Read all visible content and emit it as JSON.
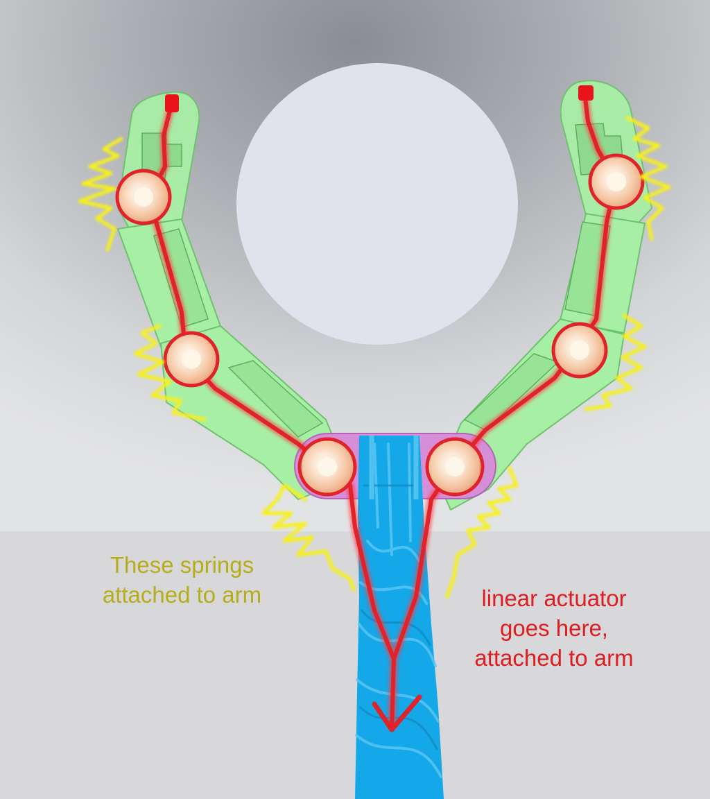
{
  "annotations": {
    "springs": {
      "lines": [
        "These springs",
        "attached to arm"
      ],
      "color": "#b5ad1a"
    },
    "actuator": {
      "lines": [
        "linear actuator",
        "goes here,",
        "attached to arm"
      ],
      "color": "#e01c20"
    }
  },
  "colors": {
    "background_top": "#8c8f94",
    "background_mid": "#d5d7da",
    "floor": "#d8d8da",
    "target_object": "#e0e2ec",
    "arm_segment": "#a8efa6",
    "arm_outline": "#6fc16f",
    "joint": "#f4c29e",
    "joint_center": "#fff6ea",
    "tendon": "#e0232a",
    "spring": "#f7f01a",
    "linear_actuator": "#14a8e8",
    "base_plate": "#d78ad9"
  },
  "icons": {
    "object": "sphere-object",
    "joint": "pivot-joint",
    "spring": "zigzag-spring"
  }
}
